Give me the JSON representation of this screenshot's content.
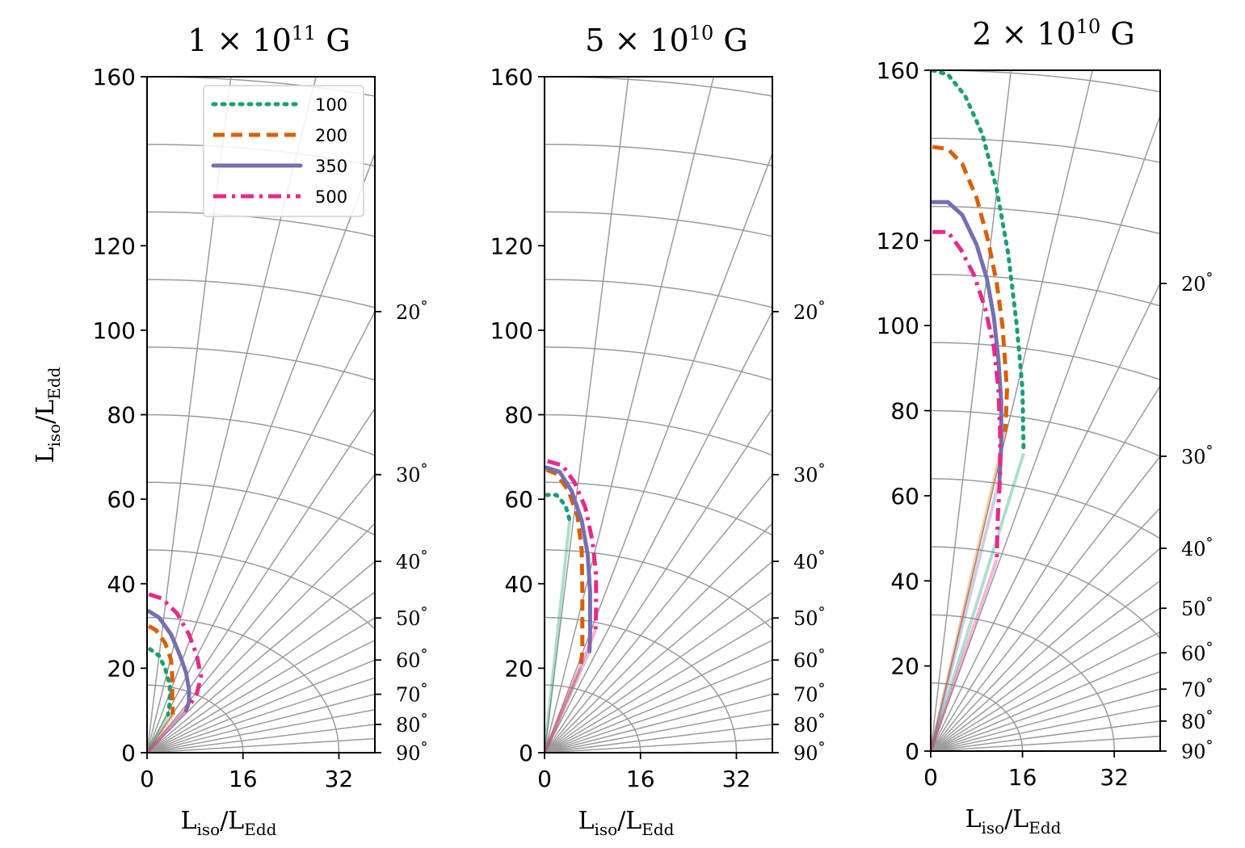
{
  "figure": {
    "xlabel_main": "L",
    "xlabel_sub1": "iso",
    "xlabel_sub2": "Edd",
    "ylabel_main": "L",
    "ylabel_sub1": "iso",
    "ylabel_sub2": "Edd",
    "angle_unit": "°",
    "grid_color": "#9b9b9b"
  },
  "legend": {
    "entries": [
      {
        "label": "100",
        "color": "#1b9e77",
        "style": "dotted"
      },
      {
        "label": "200",
        "color": "#d95f02",
        "style": "dashed"
      },
      {
        "label": "350",
        "color": "#7570b3",
        "style": "solid"
      },
      {
        "label": "500",
        "color": "#e7298a",
        "style": "dashdot"
      }
    ]
  },
  "chart_data": [
    {
      "type": "line",
      "title_prefix": "1 × 10",
      "title_exp": "11",
      "title_suffix": " G",
      "xlim": [
        0,
        38
      ],
      "ylim": [
        0,
        160
      ],
      "xticks": [
        0,
        16,
        32
      ],
      "yticks": [
        0,
        20,
        40,
        60,
        80,
        100,
        120,
        160
      ],
      "angle_ticks": [
        20,
        30,
        40,
        50,
        60,
        70,
        80,
        90
      ],
      "grid": true,
      "legend_position": "top-right",
      "series": [
        {
          "name": "100",
          "color": "#1b9e77",
          "style": "dotted",
          "points": [
            [
              0.5,
              24.5
            ],
            [
              2,
              23
            ],
            [
              3,
              20
            ],
            [
              3.8,
              16
            ],
            [
              3.8,
              12
            ],
            [
              3.5,
              9
            ]
          ]
        },
        {
          "name": "200",
          "color": "#d95f02",
          "style": "dashed",
          "points": [
            [
              0.3,
              30
            ],
            [
              1.5,
              29
            ],
            [
              3,
              26
            ],
            [
              4,
              22
            ],
            [
              4.2,
              18
            ],
            [
              4.2,
              13
            ],
            [
              4.3,
              9
            ]
          ]
        },
        {
          "name": "350",
          "color": "#7570b3",
          "style": "solid",
          "points": [
            [
              0.3,
              33.5
            ],
            [
              2,
              32
            ],
            [
              4,
              28
            ],
            [
              5.5,
              23
            ],
            [
              6.5,
              19
            ],
            [
              7,
              15
            ],
            [
              7,
              12
            ],
            [
              6.5,
              10
            ]
          ]
        },
        {
          "name": "500",
          "color": "#e7298a",
          "style": "dashdot",
          "points": [
            [
              0.3,
              37.5
            ],
            [
              2.5,
              36.5
            ],
            [
              5,
              33
            ],
            [
              7,
              28
            ],
            [
              8.3,
              23
            ],
            [
              9,
              18
            ],
            [
              8.3,
              14
            ],
            [
              7,
              11
            ]
          ]
        }
      ]
    },
    {
      "type": "line",
      "title_prefix": "5 × 10",
      "title_exp": "10",
      "title_suffix": " G",
      "xlim": [
        0,
        38
      ],
      "ylim": [
        0,
        160
      ],
      "xticks": [
        0,
        16,
        32
      ],
      "yticks": [
        0,
        20,
        40,
        60,
        80,
        100,
        120,
        160
      ],
      "angle_ticks": [
        20,
        30,
        40,
        50,
        60,
        70,
        80,
        90
      ],
      "grid": true,
      "legend_position": "none",
      "series": [
        {
          "name": "100",
          "color": "#1b9e77",
          "style": "dotted",
          "points": [
            [
              0.3,
              61
            ],
            [
              2,
              61
            ],
            [
              3.5,
              58.5
            ],
            [
              4.2,
              55
            ]
          ]
        },
        {
          "name": "200",
          "color": "#d95f02",
          "style": "dashed",
          "points": [
            [
              0.3,
              67
            ],
            [
              2,
              66
            ],
            [
              4,
              62
            ],
            [
              5.5,
              56
            ],
            [
              6.2,
              48
            ],
            [
              6.3,
              38
            ],
            [
              6.3,
              24
            ],
            [
              6.0,
              20
            ]
          ]
        },
        {
          "name": "350",
          "color": "#7570b3",
          "style": "solid",
          "points": [
            [
              0.3,
              67.5
            ],
            [
              2.5,
              66.5
            ],
            [
              4.5,
              62
            ],
            [
              6.2,
              55
            ],
            [
              7.2,
              47
            ],
            [
              7.6,
              38
            ],
            [
              7.6,
              28
            ],
            [
              7.5,
              24
            ]
          ]
        },
        {
          "name": "500",
          "color": "#e7298a",
          "style": "dashdot",
          "points": [
            [
              0.5,
              69
            ],
            [
              3,
              68
            ],
            [
              5,
              64
            ],
            [
              6.8,
              58
            ],
            [
              8,
              50
            ],
            [
              8.6,
              42
            ],
            [
              8.6,
              34
            ],
            [
              8.5,
              29
            ]
          ]
        }
      ]
    },
    {
      "type": "line",
      "title_prefix": "2 × 10",
      "title_exp": "10",
      "title_suffix": " G",
      "xlim": [
        0,
        40
      ],
      "ylim": [
        0,
        160
      ],
      "xticks": [
        0,
        16,
        32
      ],
      "yticks": [
        0,
        20,
        40,
        60,
        80,
        100,
        120,
        160
      ],
      "angle_ticks": [
        20,
        30,
        40,
        50,
        60,
        70,
        80,
        90
      ],
      "grid": true,
      "legend_position": "none",
      "series": [
        {
          "name": "100",
          "color": "#1b9e77",
          "style": "dotted",
          "points": [
            [
              0.3,
              160
            ],
            [
              3,
              159
            ],
            [
              6,
              154
            ],
            [
              9,
              145
            ],
            [
              11.5,
              132
            ],
            [
              13.5,
              117
            ],
            [
              15,
              100
            ],
            [
              16,
              85
            ],
            [
              16.2,
              70
            ]
          ]
        },
        {
          "name": "200",
          "color": "#d95f02",
          "style": "dashed",
          "points": [
            [
              0.3,
              142
            ],
            [
              3,
              141.5
            ],
            [
              5.5,
              138
            ],
            [
              8,
              130
            ],
            [
              10,
              120
            ],
            [
              11.5,
              110
            ],
            [
              12.5,
              100
            ],
            [
              13.3,
              85
            ],
            [
              13,
              75
            ]
          ]
        },
        {
          "name": "350",
          "color": "#7570b3",
          "style": "solid",
          "points": [
            [
              0.3,
              129
            ],
            [
              3,
              129
            ],
            [
              5.5,
              126
            ],
            [
              8,
              119
            ],
            [
              9.8,
              111
            ],
            [
              11,
              102
            ],
            [
              11.8,
              92
            ],
            [
              12.3,
              82
            ],
            [
              12.3,
              72
            ],
            [
              12,
              64
            ]
          ]
        },
        {
          "name": "500",
          "color": "#e7298a",
          "style": "dashdot",
          "points": [
            [
              0.3,
              122
            ],
            [
              3,
              122
            ],
            [
              5.2,
              118
            ],
            [
              7.5,
              112
            ],
            [
              9.5,
              104
            ],
            [
              11,
              95
            ],
            [
              11.8,
              85
            ],
            [
              12.1,
              75
            ],
            [
              12.1,
              65
            ],
            [
              11.7,
              55
            ],
            [
              11.5,
              45
            ]
          ]
        }
      ]
    }
  ]
}
